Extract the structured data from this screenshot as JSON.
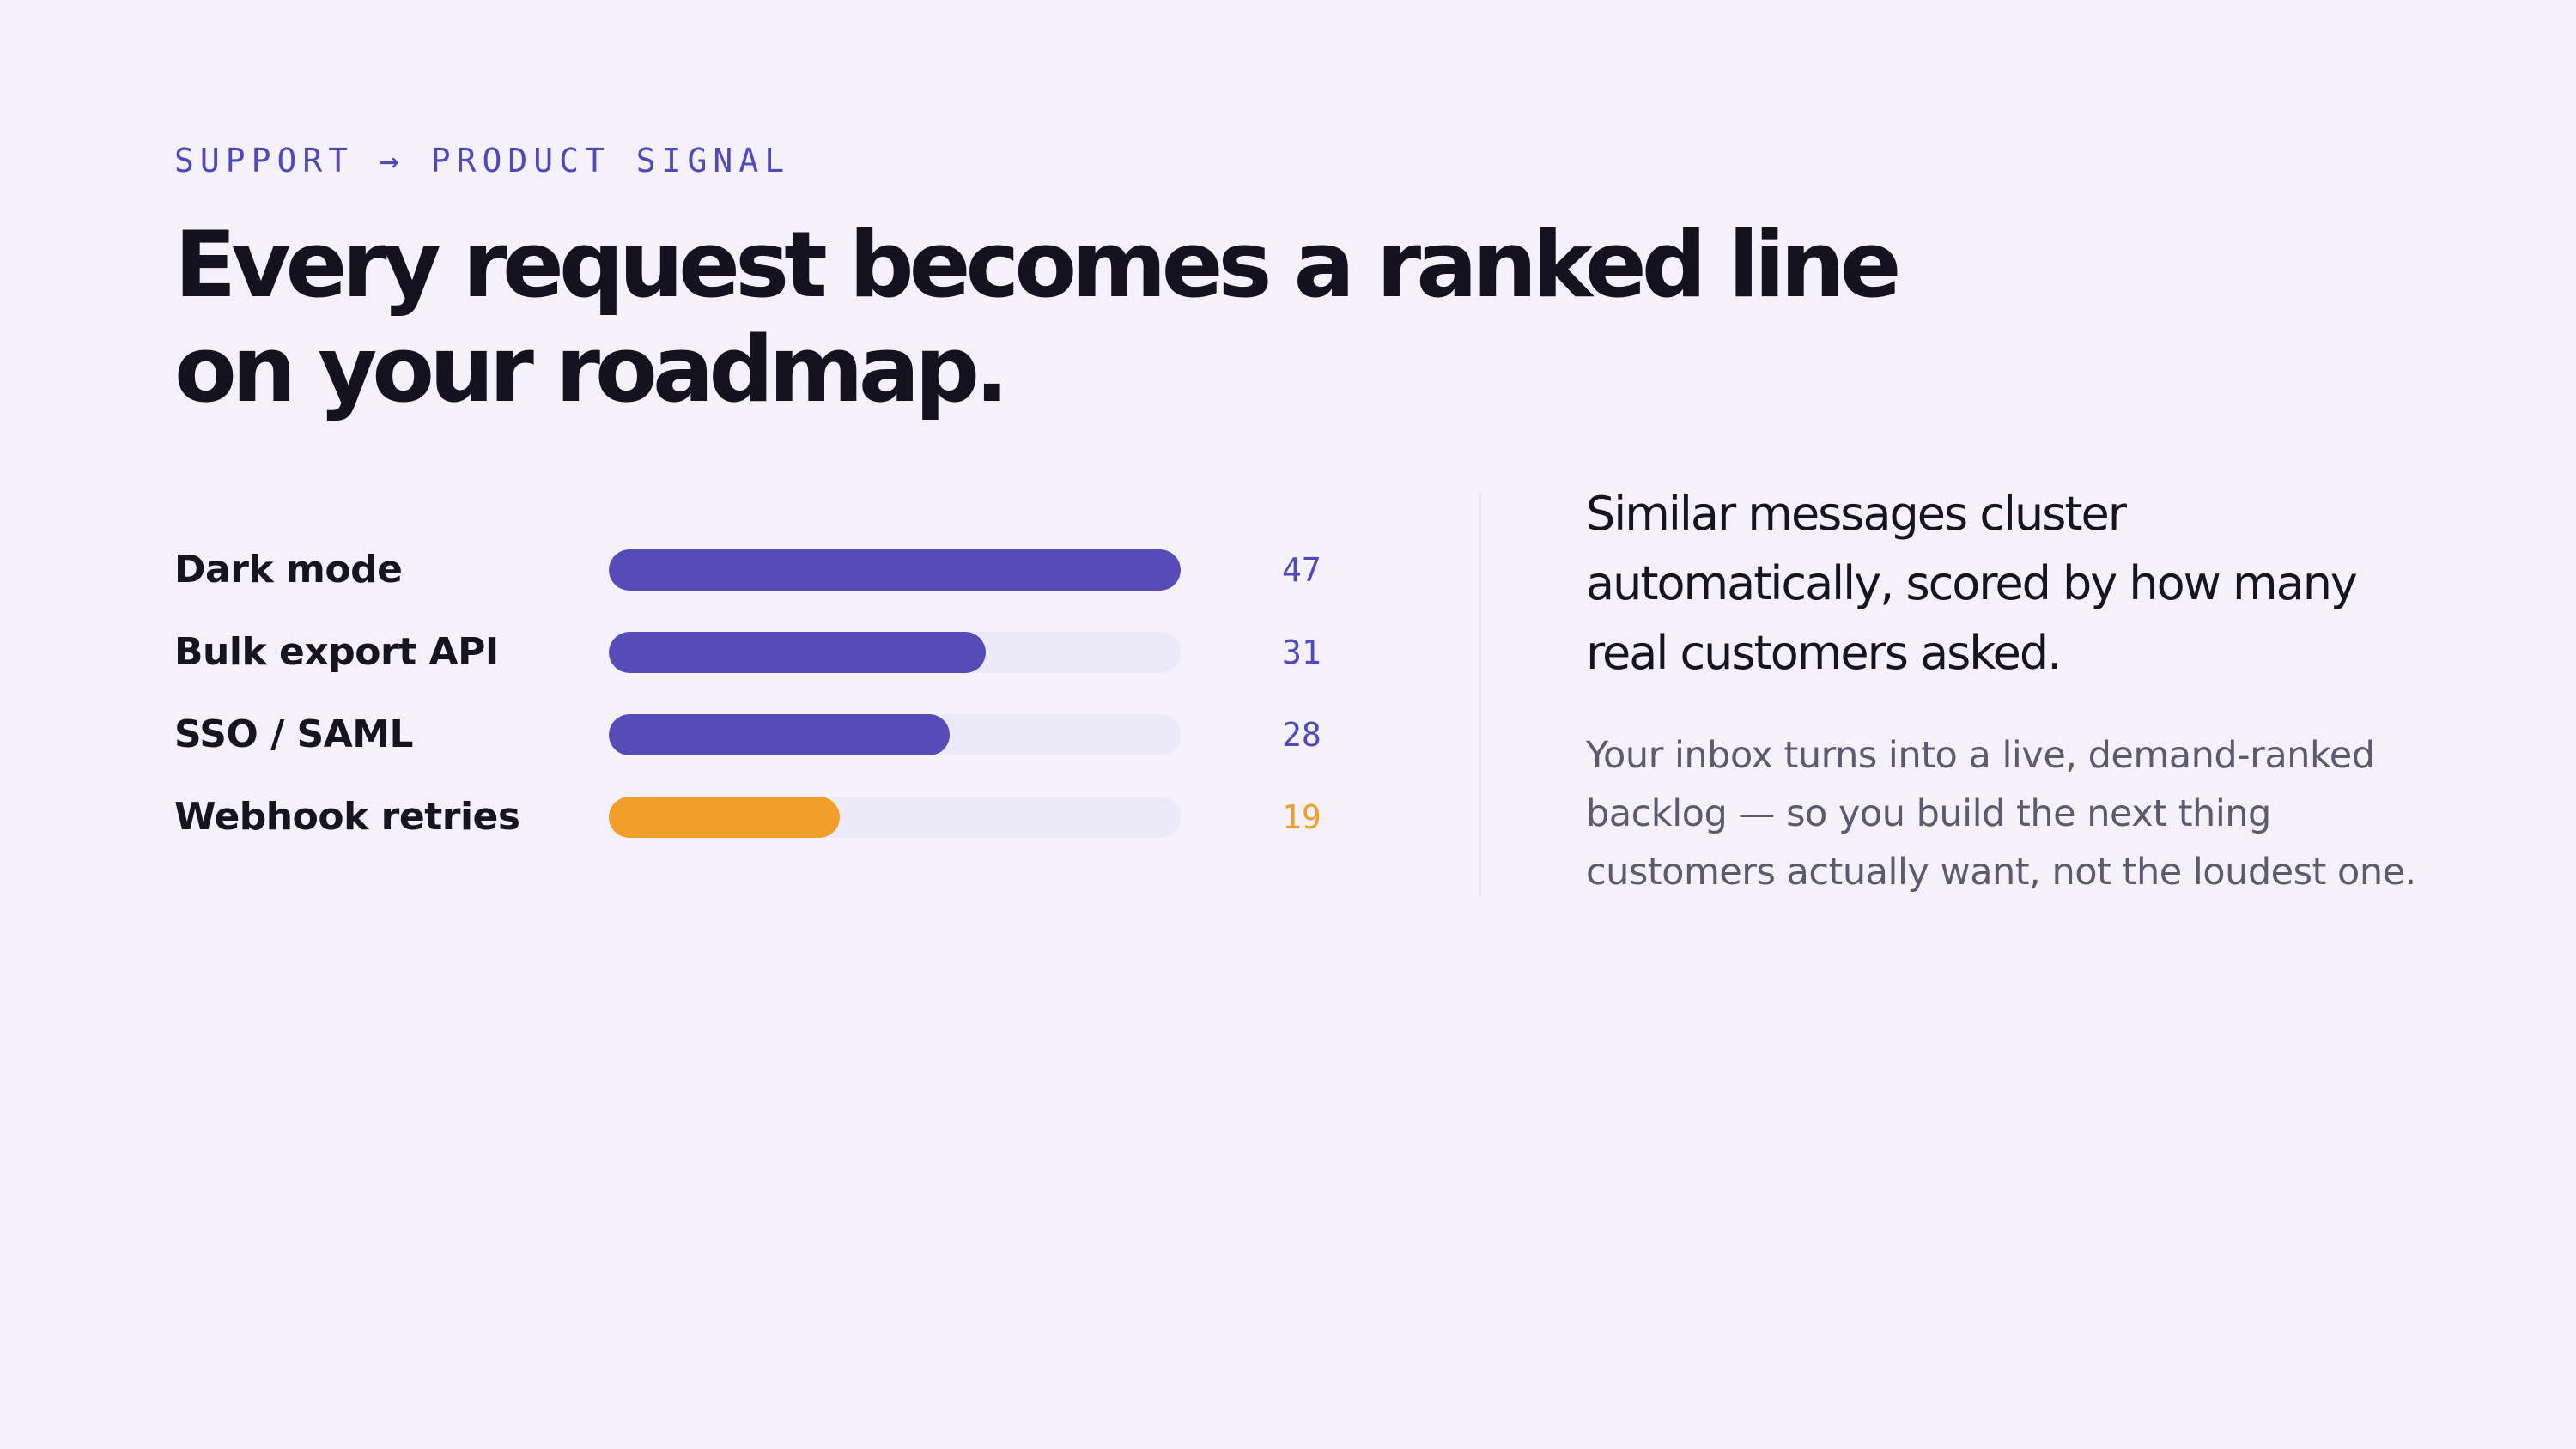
{
  "eyebrow": "SUPPORT → PRODUCT SIGNAL",
  "headline": {
    "line1": "Every request becomes a ranked line",
    "line2": "on your roadmap."
  },
  "colors": {
    "background": "#f4f1fa",
    "accent": "#554cb8",
    "highlight": "#f0a02a",
    "track": "#eceaf8",
    "heading": "#14121f",
    "body": "#5d5a6e"
  },
  "chart_data": {
    "type": "bar",
    "orientation": "horizontal",
    "categories": [
      "Dark mode",
      "Bulk export API",
      "SSO / SAML",
      "Webhook retries"
    ],
    "values": [
      47,
      31,
      28,
      19
    ],
    "value_labels": [
      "47",
      "31",
      "28",
      "19"
    ],
    "max": 47,
    "bar_colors": [
      "#554cb8",
      "#554cb8",
      "#554cb8",
      "#f0a02a"
    ],
    "value_label_colors": [
      "#5049b8",
      "#5049b8",
      "#5049b8",
      "#f0a02a"
    ],
    "grid": false
  },
  "side": {
    "lead": "Similar messages cluster automatically, scored by how many real customers asked.",
    "body": "Your inbox turns into a live, demand-ranked backlog — so you build the next thing customers actually want, not the loudest one."
  }
}
